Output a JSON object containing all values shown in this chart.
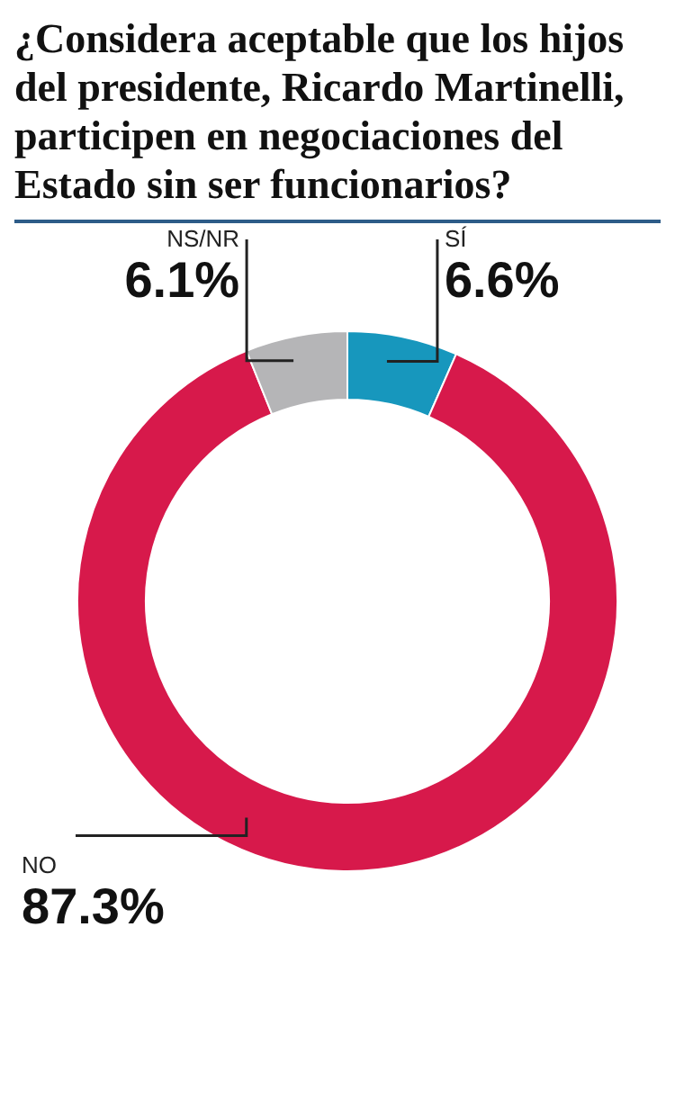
{
  "chart_data": {
    "type": "donut",
    "title": "¿Considera aceptable que los hijos del presidente, Ricardo Martinelli, participen en negociaciones del Estado sin ser funcionarios?",
    "categories": [
      "SÍ",
      "NO",
      "NS/NR"
    ],
    "values": [
      6.6,
      87.3,
      6.1
    ],
    "colors": [
      "#1797bd",
      "#d7194b",
      "#b5b5b7"
    ],
    "value_labels": [
      "6.6%",
      "87.3%",
      "6.1%"
    ]
  }
}
